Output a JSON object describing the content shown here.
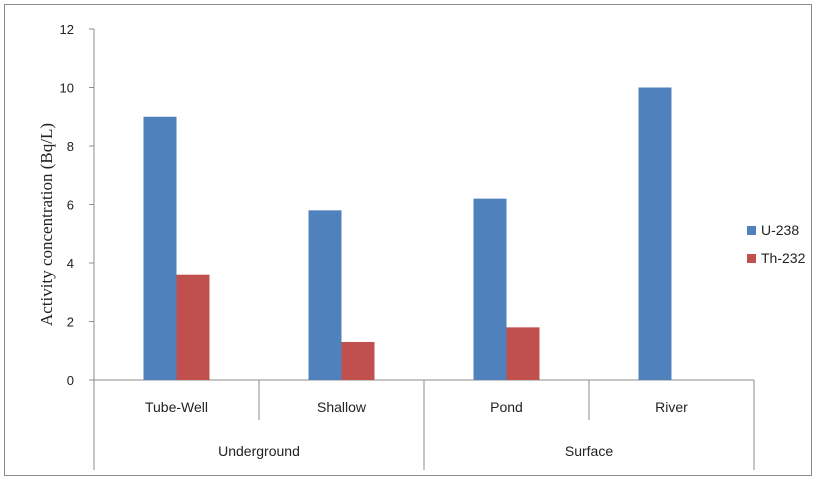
{
  "chart_data": {
    "type": "bar",
    "title": "",
    "xlabel": "",
    "ylabel": "Activity concentration (Bq/L)",
    "ylim": [
      0,
      12
    ],
    "yticks": [
      0,
      2,
      4,
      6,
      8,
      10,
      12
    ],
    "grid": false,
    "legend_position": "right",
    "categories": [
      "Tube-Well",
      "Shallow",
      "Pond",
      "River"
    ],
    "groups": [
      {
        "label": "Underground",
        "categories": [
          "Tube-Well",
          "Shallow"
        ]
      },
      {
        "label": "Surface",
        "categories": [
          "Pond",
          "River"
        ]
      }
    ],
    "series": [
      {
        "name": "U-238",
        "color": "#4f81bd",
        "values": [
          9.0,
          5.8,
          6.2,
          10.0
        ]
      },
      {
        "name": "Th-232",
        "color": "#c0504d",
        "values": [
          3.6,
          1.3,
          1.8,
          null
        ]
      }
    ]
  }
}
